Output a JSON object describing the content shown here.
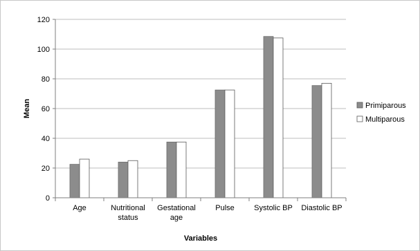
{
  "chart_data": {
    "type": "bar",
    "title": "",
    "xlabel": "Variables",
    "ylabel": "Mean",
    "ylim": [
      0,
      120
    ],
    "yticks": [
      0,
      20,
      40,
      60,
      80,
      100,
      120
    ],
    "grid": true,
    "legend_position": "right",
    "categories": [
      [
        "Age"
      ],
      [
        "Nutritional",
        "status"
      ],
      [
        "Gestational",
        "age"
      ],
      [
        "Pulse"
      ],
      [
        "Systolic BP"
      ],
      [
        "Diastolic BP"
      ]
    ],
    "series": [
      {
        "name": "Primiparous",
        "color": "#8c8c8c",
        "values": [
          22.5,
          24,
          37.5,
          72.5,
          108.5,
          75.5
        ]
      },
      {
        "name": "Multiparous",
        "color": "#ffffff",
        "values": [
          26,
          25,
          37.5,
          72.5,
          107.5,
          77
        ]
      }
    ]
  }
}
